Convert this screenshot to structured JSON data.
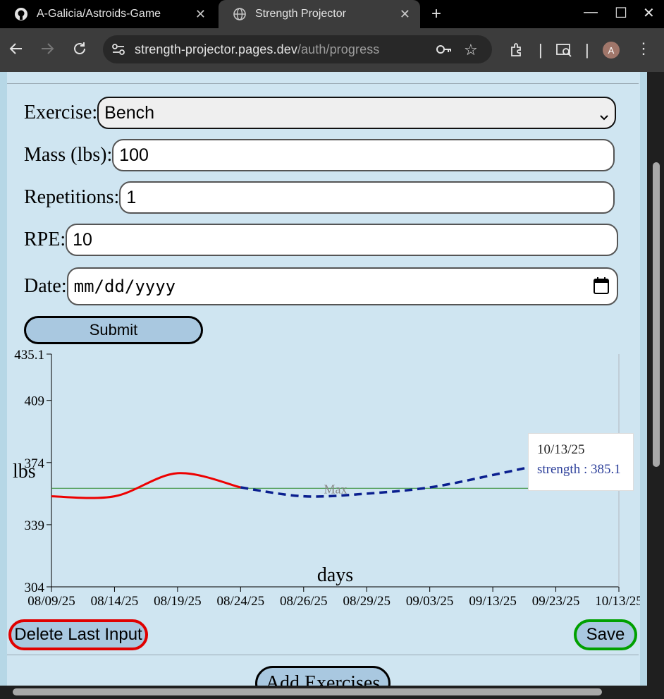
{
  "browser": {
    "tabs": [
      {
        "title": "A-Galicia/Astroids-Game",
        "icon": "github-icon",
        "active": false
      },
      {
        "title": "Strength Projector",
        "icon": "globe-icon",
        "active": true
      }
    ],
    "url_host": "strength-projector.pages.dev",
    "url_path": "/auth/progress",
    "avatar_initial": "A"
  },
  "form": {
    "exercise_label": "Exercise:",
    "exercise_value": "Bench",
    "mass_label": "Mass (lbs):",
    "mass_value": "100",
    "reps_label": "Repetitions:",
    "reps_value": "1",
    "rpe_label": "RPE:",
    "rpe_value": "10",
    "date_label": "Date:",
    "date_placeholder": "mm/dd/yyyy",
    "submit_label": "Submit"
  },
  "actions": {
    "delete_label": "Delete Last Input",
    "save_label": "Save",
    "add_label": "Add Exercises"
  },
  "colors": {
    "history": "#ee0000",
    "projection": "#0a1f8f",
    "max_line": "#2e8b2e",
    "delete_border": "#e00000",
    "save_border": "#00a000"
  },
  "tooltip": {
    "date": "10/13/25",
    "text": "strength : 385.1"
  },
  "chart_data": {
    "type": "line",
    "xlabel": "days",
    "ylabel": "lbs",
    "y_ticks": [
      "435.1",
      "409",
      "374",
      "339",
      "304"
    ],
    "x_ticks": [
      "08/09/25",
      "08/14/25",
      "08/19/25",
      "08/24/25",
      "08/26/25",
      "08/29/25",
      "09/03/25",
      "09/13/25",
      "09/23/25",
      "10/13/25"
    ],
    "ylim": [
      304,
      435.1
    ],
    "max_label": "Max",
    "max_value": 359.5,
    "series": [
      {
        "style": "solid",
        "x": [
          "08/09/25",
          "08/14/25",
          "08/19/25",
          "08/24/25"
        ],
        "y": [
          355,
          355,
          368,
          360
        ]
      },
      {
        "style": "dashed",
        "x": [
          "08/24/25",
          "08/26/25",
          "08/29/25",
          "09/03/25",
          "09/13/25",
          "09/23/25",
          "10/13/25"
        ],
        "y": [
          360,
          355,
          356.5,
          360,
          367,
          375,
          385.1
        ]
      }
    ]
  }
}
